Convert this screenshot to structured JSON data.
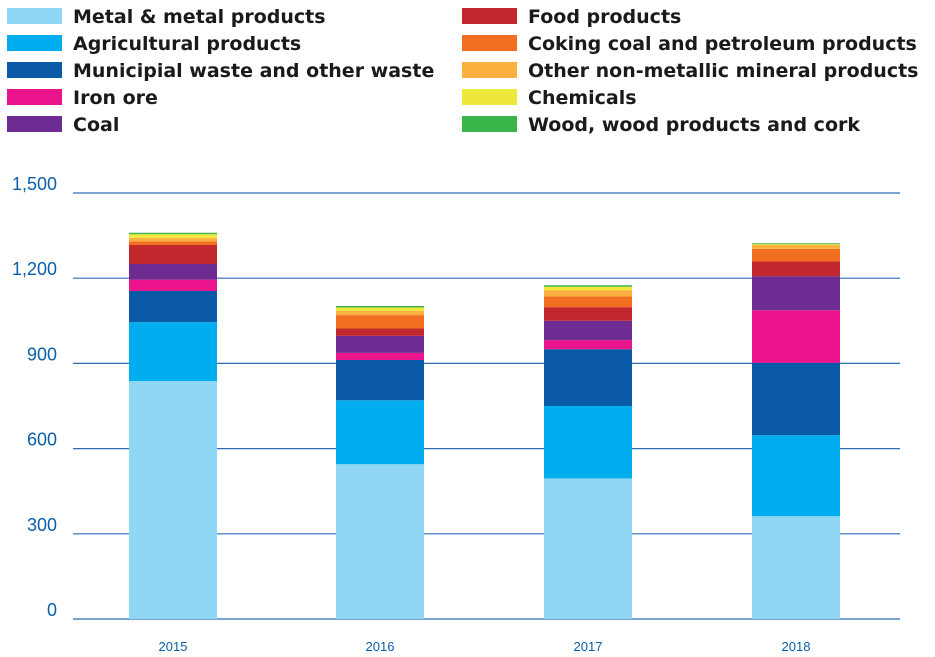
{
  "chart_data": {
    "type": "bar",
    "stacked": true,
    "categories": [
      "2015",
      "2016",
      "2017",
      "2018"
    ],
    "ylim": [
      0,
      1500
    ],
    "yticks": [
      0,
      300,
      600,
      900,
      1200,
      1500
    ],
    "ytick_labels": [
      "0",
      "300",
      "600",
      "900",
      "1,200",
      "1,500"
    ],
    "grid": true,
    "legend_position": "top",
    "series": [
      {
        "name": "Metal & metal products",
        "color": "#8fd7f5",
        "values": [
          838,
          545,
          495,
          362
        ]
      },
      {
        "name": "Agricultural products",
        "color": "#00aeef",
        "values": [
          207,
          225,
          255,
          285
        ]
      },
      {
        "name": "Municipial waste and other waste",
        "color": "#0a5aa8",
        "values": [
          110,
          142,
          200,
          255
        ]
      },
      {
        "name": "Iron ore",
        "color": "#ec148c",
        "values": [
          40,
          25,
          32,
          185
        ]
      },
      {
        "name": "Coal",
        "color": "#6c2c91",
        "values": [
          55,
          60,
          68,
          120
        ]
      },
      {
        "name": "Food products",
        "color": "#c1272d",
        "values": [
          67,
          26,
          48,
          52
        ]
      },
      {
        "name": "Coking coal and petroleum products",
        "color": "#f26f21",
        "values": [
          13,
          47,
          38,
          44
        ]
      },
      {
        "name": "Other non-metallic mineral products",
        "color": "#fbb040",
        "values": [
          12,
          15,
          22,
          14
        ]
      },
      {
        "name": "Chemicals",
        "color": "#eee83a",
        "values": [
          13,
          12,
          12,
          3
        ]
      },
      {
        "name": "Wood, wood products and cork",
        "color": "#39b54a",
        "values": [
          5,
          5,
          5,
          3
        ]
      }
    ]
  }
}
